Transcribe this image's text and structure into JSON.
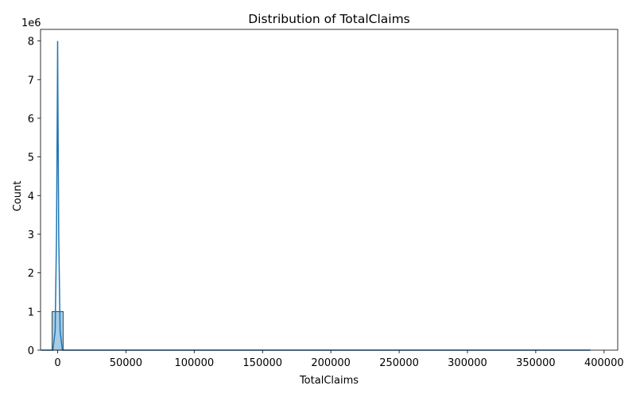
{
  "chart_data": {
    "type": "histogram",
    "title": "Distribution of TotalClaims",
    "xlabel": "TotalClaims",
    "ylabel": "Count",
    "y_offset_text": "1e6",
    "xlim": [
      -12500,
      410000
    ],
    "ylim": [
      0,
      8300000
    ],
    "x_ticks": [
      {
        "value": 0,
        "label": "0"
      },
      {
        "value": 50000,
        "label": "50000"
      },
      {
        "value": 100000,
        "label": "100000"
      },
      {
        "value": 150000,
        "label": "150000"
      },
      {
        "value": 200000,
        "label": "200000"
      },
      {
        "value": 250000,
        "label": "250000"
      },
      {
        "value": 300000,
        "label": "300000"
      },
      {
        "value": 350000,
        "label": "350000"
      },
      {
        "value": 400000,
        "label": "400000"
      }
    ],
    "y_ticks": [
      {
        "value": 0,
        "label": "0"
      },
      {
        "value": 1000000,
        "label": "1"
      },
      {
        "value": 2000000,
        "label": "2"
      },
      {
        "value": 3000000,
        "label": "3"
      },
      {
        "value": 4000000,
        "label": "4"
      },
      {
        "value": 5000000,
        "label": "5"
      },
      {
        "value": 6000000,
        "label": "6"
      },
      {
        "value": 7000000,
        "label": "7"
      },
      {
        "value": 8000000,
        "label": "8"
      }
    ],
    "bins": [
      {
        "x0": -4000,
        "x1": 4000,
        "count": 1000000
      }
    ],
    "kde": [
      [
        -12000,
        0
      ],
      [
        -3500,
        0
      ],
      [
        -1800,
        500000
      ],
      [
        -800,
        3000000
      ],
      [
        -200,
        6500000
      ],
      [
        0,
        8000000
      ],
      [
        200,
        6500000
      ],
      [
        800,
        3000000
      ],
      [
        1800,
        500000
      ],
      [
        3500,
        0
      ],
      [
        390000,
        0
      ]
    ],
    "colors": {
      "bar_fill": "#a6cde8",
      "bar_edge": "#1a1a1a",
      "kde_line": "#1f77b4"
    },
    "grid": false
  }
}
